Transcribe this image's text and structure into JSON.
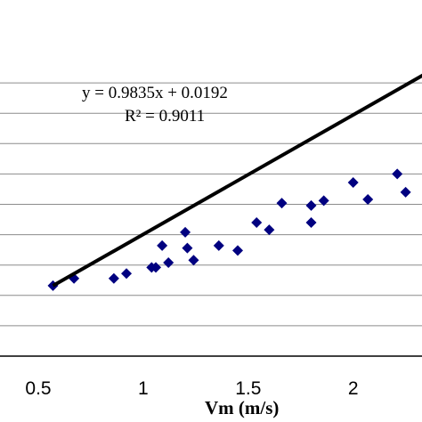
{
  "chart_data": {
    "type": "scatter",
    "xlabel": "Vm (m/s)",
    "ylabel": "",
    "xlim": [
      0.5,
      2.4
    ],
    "ylim": [
      0.0,
      2.5
    ],
    "grid": true,
    "x_ticks": [
      "0.5",
      "1",
      "1.5",
      "2"
    ],
    "x_tick_values": [
      0.5,
      1.0,
      1.5,
      2.0
    ],
    "y_gridlines": [
      0.25,
      0.5,
      0.75,
      1.0,
      1.25,
      1.5,
      1.75,
      2.0,
      2.25
    ],
    "series": [
      {
        "marker": "diamond",
        "color": "#000080",
        "points": [
          [
            0.57,
            0.58
          ],
          [
            0.67,
            0.64
          ],
          [
            0.86,
            0.64
          ],
          [
            0.92,
            0.68
          ],
          [
            1.04,
            0.73
          ],
          [
            1.06,
            0.73
          ],
          [
            1.09,
            0.91
          ],
          [
            1.12,
            0.77
          ],
          [
            1.2,
            1.02
          ],
          [
            1.21,
            0.89
          ],
          [
            1.24,
            0.79
          ],
          [
            1.36,
            0.91
          ],
          [
            1.45,
            0.87
          ],
          [
            1.54,
            1.1
          ],
          [
            1.6,
            1.04
          ],
          [
            1.66,
            1.26
          ],
          [
            1.8,
            1.24
          ],
          [
            1.8,
            1.1
          ],
          [
            1.86,
            1.28
          ],
          [
            2.0,
            1.43
          ],
          [
            2.07,
            1.29
          ],
          [
            2.21,
            1.5
          ],
          [
            2.25,
            1.35
          ]
        ]
      }
    ],
    "trendline": {
      "slope": 0.9835,
      "intercept": 0.0192,
      "x_range": [
        0.57,
        2.4
      ],
      "color": "#000000"
    },
    "annotations": {
      "equation": "y = 0.9835x + 0.0192",
      "r_squared": "R² = 0.9011"
    }
  }
}
